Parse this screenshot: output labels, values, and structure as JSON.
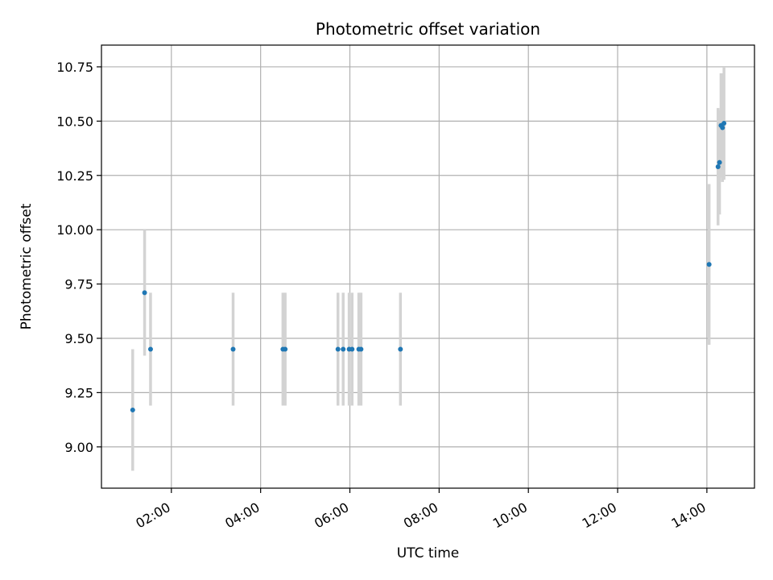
{
  "chart_data": {
    "type": "scatter",
    "title": "Photometric offset variation",
    "xlabel": "UTC time",
    "ylabel": "Photometric offset",
    "x_axis_type": "time",
    "x_tick_labels": [
      "02:00",
      "04:00",
      "06:00",
      "08:00",
      "10:00",
      "12:00",
      "14:00"
    ],
    "y_tick_labels": [
      "9.00",
      "9.25",
      "9.50",
      "9.75",
      "10.00",
      "10.25",
      "10.50",
      "10.75"
    ],
    "xlim": [
      "00:26",
      "15:04"
    ],
    "ylim": [
      8.81,
      10.85
    ],
    "grid": true,
    "marker_color": "#1f77b4",
    "errorbar_color": "#d3d3d3",
    "points": [
      {
        "x": "01:08",
        "y": 9.17,
        "err": 0.28
      },
      {
        "x": "01:24",
        "y": 9.71,
        "err": 0.29
      },
      {
        "x": "01:32",
        "y": 9.45,
        "err": 0.26
      },
      {
        "x": "03:23",
        "y": 9.45,
        "err": 0.26
      },
      {
        "x": "04:30",
        "y": 9.45,
        "err": 0.26
      },
      {
        "x": "04:33",
        "y": 9.45,
        "err": 0.26
      },
      {
        "x": "05:44",
        "y": 9.45,
        "err": 0.26
      },
      {
        "x": "05:51",
        "y": 9.45,
        "err": 0.26
      },
      {
        "x": "05:59",
        "y": 9.45,
        "err": 0.26
      },
      {
        "x": "06:03",
        "y": 9.45,
        "err": 0.26
      },
      {
        "x": "06:12",
        "y": 9.45,
        "err": 0.26
      },
      {
        "x": "06:15",
        "y": 9.45,
        "err": 0.26
      },
      {
        "x": "07:08",
        "y": 9.45,
        "err": 0.26
      },
      {
        "x": "14:03",
        "y": 9.84,
        "err": 0.37
      },
      {
        "x": "14:15",
        "y": 10.29,
        "err": 0.27
      },
      {
        "x": "14:17",
        "y": 10.31,
        "err": 0.24
      },
      {
        "x": "14:19",
        "y": 10.48,
        "err": 0.24
      },
      {
        "x": "14:21",
        "y": 10.47,
        "err": 0.25
      },
      {
        "x": "14:23",
        "y": 10.49,
        "err": 0.26
      }
    ]
  }
}
